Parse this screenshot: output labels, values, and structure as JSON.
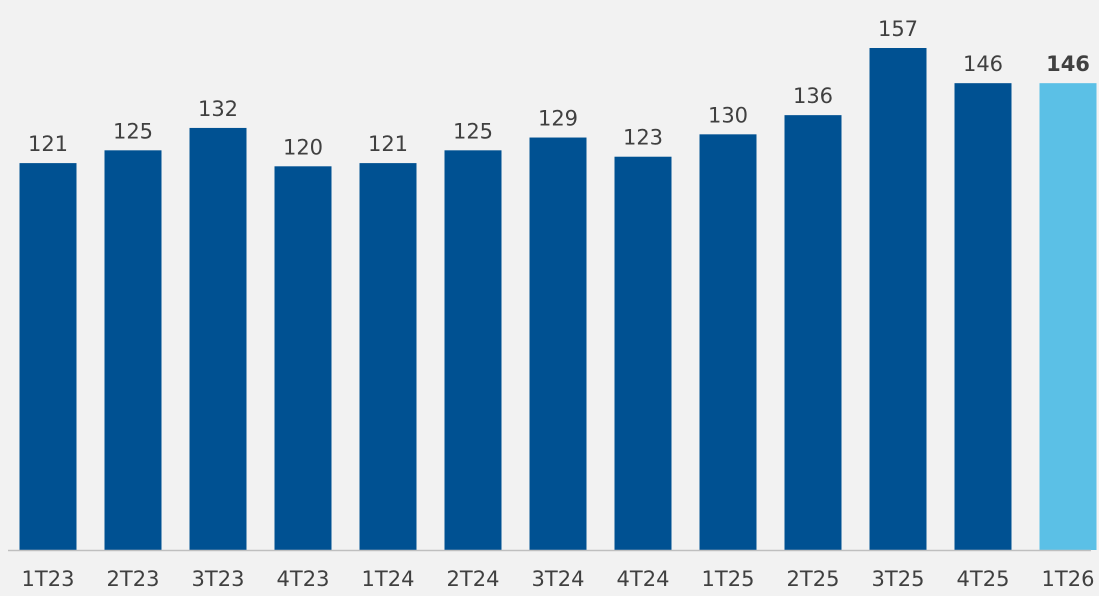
{
  "chart_data": {
    "type": "bar",
    "categories": [
      "1T23",
      "2T23",
      "3T23",
      "4T23",
      "1T24",
      "2T24",
      "3T24",
      "4T24",
      "1T25",
      "2T25",
      "3T25",
      "4T25",
      "1T26"
    ],
    "values": [
      121,
      125,
      132,
      120,
      121,
      125,
      129,
      123,
      130,
      136,
      157,
      146,
      146
    ],
    "value_labels": [
      "121",
      "125",
      "132",
      "120",
      "121",
      "125",
      "129",
      "123",
      "130",
      "136",
      "157",
      "146",
      "146"
    ],
    "highlighted_index": 12,
    "ylim": [
      0,
      157
    ],
    "grid": false,
    "legend": "none",
    "title": "",
    "xlabel": "",
    "ylabel": ""
  },
  "colors": {
    "background": "#f2f2f2",
    "bar": "#005192",
    "bar_highlight": "#5bc0e6",
    "axis_line": "#bfbfbf",
    "text": "#404040"
  }
}
